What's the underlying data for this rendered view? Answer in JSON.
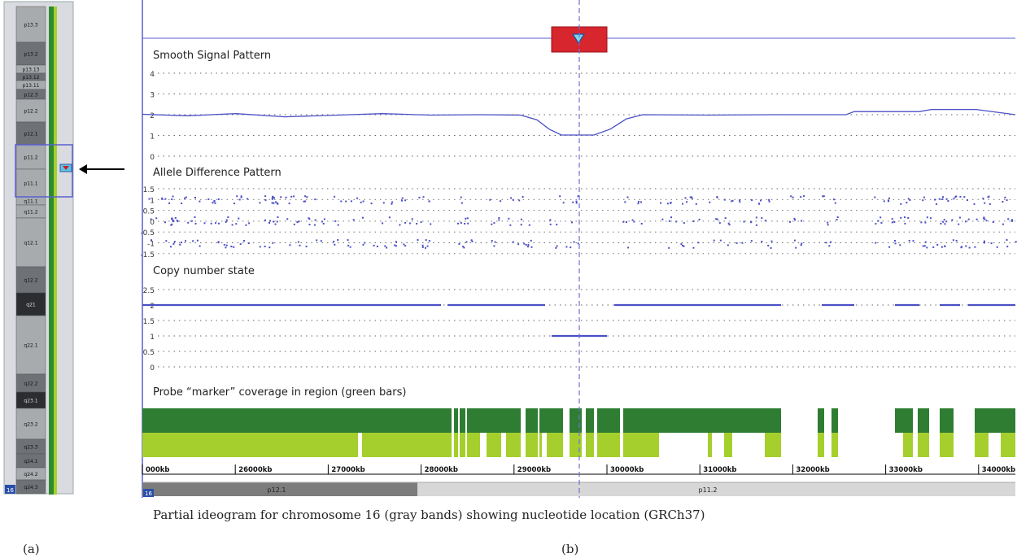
{
  "ideogram": {
    "chromosome": "16",
    "bands": [
      {
        "label": "p13.3",
        "shade": "gray"
      },
      {
        "label": "p13.2",
        "shade": "dark"
      },
      {
        "label": "p13.13",
        "shade": "gray"
      },
      {
        "label": "p13.12",
        "shade": "dark"
      },
      {
        "label": "p13.11",
        "shade": "gray"
      },
      {
        "label": "p12.3",
        "shade": "dark"
      },
      {
        "label": "p12.2",
        "shade": "gray"
      },
      {
        "label": "p12.1",
        "shade": "dark"
      },
      {
        "label": "p11.2",
        "shade": "gray"
      },
      {
        "label": "p11.1",
        "shade": "gray"
      },
      {
        "label": "q11.1",
        "shade": "gray"
      },
      {
        "label": "q11.2",
        "shade": "gray"
      },
      {
        "label": "q12.1",
        "shade": "gray"
      },
      {
        "label": "q12.2",
        "shade": "dark"
      },
      {
        "label": "q21",
        "shade": "black"
      },
      {
        "label": "q22.1",
        "shade": "gray"
      },
      {
        "label": "q22.2",
        "shade": "dark"
      },
      {
        "label": "q23.1",
        "shade": "black"
      },
      {
        "label": "q23.2",
        "shade": "gray"
      },
      {
        "label": "q23.3",
        "shade": "dark"
      },
      {
        "label": "q24.1",
        "shade": "dark"
      },
      {
        "label": "q24.2",
        "shade": "gray"
      },
      {
        "label": "q24.3",
        "shade": "dark"
      }
    ]
  },
  "panels": {
    "smooth": {
      "title": "Smooth Signal Pattern",
      "ticks": [
        "4",
        "3",
        "2",
        "1",
        "0"
      ]
    },
    "allele": {
      "title": "Allele Difference Pattern",
      "ticks": [
        "1.5",
        "1",
        "0.5",
        "0",
        "-0.5",
        "-1",
        "-1.5"
      ]
    },
    "copy": {
      "title": "Copy number state",
      "ticks": [
        "2.5",
        "2",
        "1.5",
        "1",
        "0.5",
        "0"
      ]
    },
    "coverage": {
      "title": "Probe “marker” coverage in region (green bars)"
    }
  },
  "axis": {
    "ticks": [
      "000kb",
      "26000kb",
      "27000kb",
      "28000kb",
      "29000kb",
      "30000kb",
      "31000kb",
      "32000kb",
      "33000kb",
      "34000kb"
    ]
  },
  "band_bar": {
    "chrom": "16",
    "left": "p12.1",
    "right": "p11.2"
  },
  "caption": "Partial ideogram for chromosome 16 (gray bands) showing nucleotide location (GRCh37)",
  "labels": {
    "a": "(a)",
    "b": "(b)"
  },
  "colors": {
    "signal": "#4b4fc4",
    "dark_green": "#2e7d32",
    "light_green": "#a5cf2c",
    "marker": "#d8262e",
    "accent_line": "#5a5fd0"
  }
}
